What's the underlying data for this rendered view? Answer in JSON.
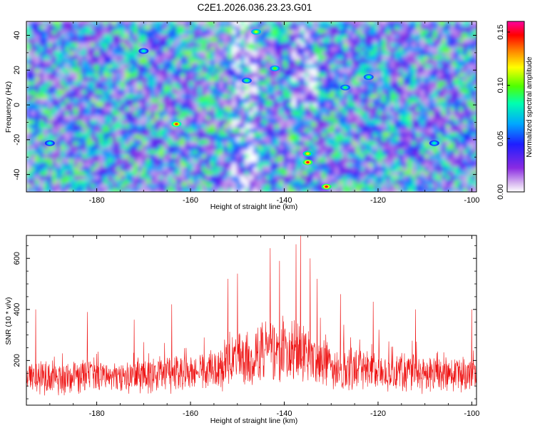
{
  "title": "C2E1.2026.036.23.23.G01",
  "chart_data": [
    {
      "type": "heatmap",
      "xlabel": "Height of straight line (km)",
      "ylabel": "Frequency (Hz)",
      "xlim": [
        -195,
        -99
      ],
      "ylim": [
        -50,
        48
      ],
      "xticks": [
        -180,
        -160,
        -140,
        -120,
        -100
      ],
      "yticks": [
        -40,
        -20,
        0,
        20,
        40
      ],
      "colorbar": {
        "label": "Normalized spectral amplitude",
        "range": [
          0.0,
          0.16
        ],
        "ticks": [
          0.0,
          0.05,
          0.1,
          0.15
        ],
        "tick_labels": [
          "0.00",
          "0.05",
          "0.10",
          "0.15"
        ],
        "colormap": [
          "#ffffff",
          "#d8b8f0",
          "#8a2be2",
          "#1e1eff",
          "#00a8ff",
          "#00ffb0",
          "#50ff00",
          "#ffff00",
          "#ff8000",
          "#ff0000",
          "#ff00a0"
        ]
      },
      "hotspots": [
        {
          "x": -163,
          "y": -11,
          "value": 0.14
        },
        {
          "x": -135,
          "y": -33,
          "value": 0.15
        },
        {
          "x": -131,
          "y": -47,
          "value": 0.15
        },
        {
          "x": -146,
          "y": 42,
          "value": 0.11
        },
        {
          "x": -142,
          "y": 21,
          "value": 0.1
        },
        {
          "x": -148,
          "y": 14,
          "value": 0.09
        },
        {
          "x": -135,
          "y": -28,
          "value": 0.12
        },
        {
          "x": -127,
          "y": 10,
          "value": 0.09
        },
        {
          "x": -122,
          "y": 16,
          "value": 0.09
        },
        {
          "x": -170,
          "y": 31,
          "value": 0.08
        },
        {
          "x": -190,
          "y": -22,
          "value": 0.08
        },
        {
          "x": -108,
          "y": -22,
          "value": 0.08
        }
      ]
    },
    {
      "type": "line",
      "xlabel": "Height of straight line (km)",
      "ylabel": "SNR (10 * v/v)",
      "xlim": [
        -195,
        -99
      ],
      "ylim": [
        25,
        690
      ],
      "xticks": [
        -180,
        -160,
        -140,
        -120,
        -100
      ],
      "yticks": [
        200,
        400,
        600
      ],
      "series": [
        {
          "name": "SNR",
          "color": "#ee1111",
          "x_range": [
            -195,
            -99
          ],
          "n_points": 1500,
          "baseline_envelope": {
            "x": [
              -195,
              -170,
              -160,
              -155,
              -150,
              -145,
              -140,
              -136,
              -130,
              -120,
              -110,
              -99
            ],
            "mean": [
              130,
              140,
              150,
              170,
              200,
              220,
              230,
              220,
              180,
              160,
              145,
              140
            ],
            "spread": [
              70,
              75,
              85,
              100,
              120,
              140,
              150,
              140,
              110,
              90,
              80,
              80
            ]
          },
          "peaks": [
            {
              "x": -193,
              "y": 400
            },
            {
              "x": -182,
              "y": 390
            },
            {
              "x": -172,
              "y": 360
            },
            {
              "x": -164,
              "y": 420
            },
            {
              "x": -152,
              "y": 520
            },
            {
              "x": -150,
              "y": 540
            },
            {
              "x": -143,
              "y": 640
            },
            {
              "x": -141,
              "y": 590
            },
            {
              "x": -137.5,
              "y": 655
            },
            {
              "x": -136.5,
              "y": 690
            },
            {
              "x": -134.5,
              "y": 600
            },
            {
              "x": -133,
              "y": 520
            },
            {
              "x": -128,
              "y": 460
            },
            {
              "x": -121,
              "y": 430
            },
            {
              "x": -112,
              "y": 400
            },
            {
              "x": -100,
              "y": 400
            }
          ]
        }
      ]
    }
  ]
}
